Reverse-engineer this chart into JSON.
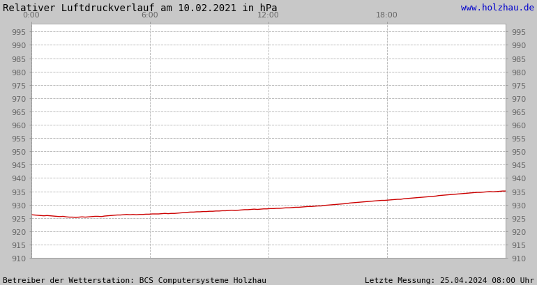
{
  "title": "Relativer Luftdruckverlauf am 10.02.2021 in hPa",
  "url_text": "www.holzhau.de",
  "footer_left": "Betreiber der Wetterstation: BCS Computersysteme Holzhau",
  "footer_right": "Letzte Messung: 25.04.2024 08:00 Uhr",
  "background_color": "#c8c8c8",
  "plot_bg_color": "#ffffff",
  "line_color": "#cc0000",
  "grid_color": "#b0b0b0",
  "title_color": "#000000",
  "url_color": "#0000cc",
  "footer_color": "#000000",
  "ylim": [
    910,
    998
  ],
  "ytick_step": 5,
  "yticks": [
    910,
    915,
    920,
    925,
    930,
    935,
    940,
    945,
    950,
    955,
    960,
    965,
    970,
    975,
    980,
    985,
    990,
    995
  ],
  "xtick_labels": [
    "0:00",
    "6:00",
    "12:00",
    "18:00"
  ],
  "xtick_positions": [
    0,
    6,
    12,
    18
  ],
  "xlim": [
    0,
    24
  ],
  "title_fontsize": 10,
  "tick_fontsize": 8,
  "footer_fontsize": 8,
  "url_fontsize": 9,
  "pressure_data": [
    926.2,
    926.1,
    926.0,
    925.9,
    925.8,
    925.9,
    925.8,
    925.7,
    925.6,
    925.5,
    925.6,
    925.4,
    925.3,
    925.3,
    925.2,
    925.3,
    925.4,
    925.3,
    925.4,
    925.5,
    925.6,
    925.6,
    925.5,
    925.7,
    925.8,
    925.9,
    926.0,
    926.1,
    926.1,
    926.2,
    926.3,
    926.2,
    926.3,
    926.2,
    926.3,
    926.3,
    926.4,
    926.4,
    926.5,
    926.5,
    926.5,
    926.6,
    926.7,
    926.6,
    926.7,
    926.7,
    926.8,
    926.9,
    927.0,
    927.1,
    927.2,
    927.2,
    927.3,
    927.3,
    927.4,
    927.4,
    927.5,
    927.5,
    927.6,
    927.6,
    927.7,
    927.7,
    927.8,
    927.9,
    927.8,
    927.9,
    928.0,
    928.1,
    928.1,
    928.2,
    928.3,
    928.2,
    928.3,
    928.4,
    928.4,
    928.5,
    928.5,
    928.6,
    928.6,
    928.7,
    928.8,
    928.8,
    928.9,
    929.0,
    929.0,
    929.1,
    929.2,
    929.3,
    929.3,
    929.4,
    929.5,
    929.5,
    929.7,
    929.8,
    929.9,
    930.0,
    930.1,
    930.2,
    930.3,
    930.4,
    930.6,
    930.7,
    930.8,
    930.9,
    931.0,
    931.1,
    931.2,
    931.3,
    931.4,
    931.5,
    931.6,
    931.6,
    931.7,
    931.8,
    931.9,
    932.0,
    932.0,
    932.2,
    932.3,
    932.4,
    932.5,
    932.6,
    932.7,
    932.8,
    932.9,
    933.0,
    933.1,
    933.2,
    933.4,
    933.5,
    933.6,
    933.7,
    933.8,
    933.9,
    934.0,
    934.1,
    934.2,
    934.3,
    934.4,
    934.5,
    934.6,
    934.6,
    934.7,
    934.8,
    934.9,
    934.8,
    934.9,
    935.0,
    935.1,
    935.1
  ]
}
